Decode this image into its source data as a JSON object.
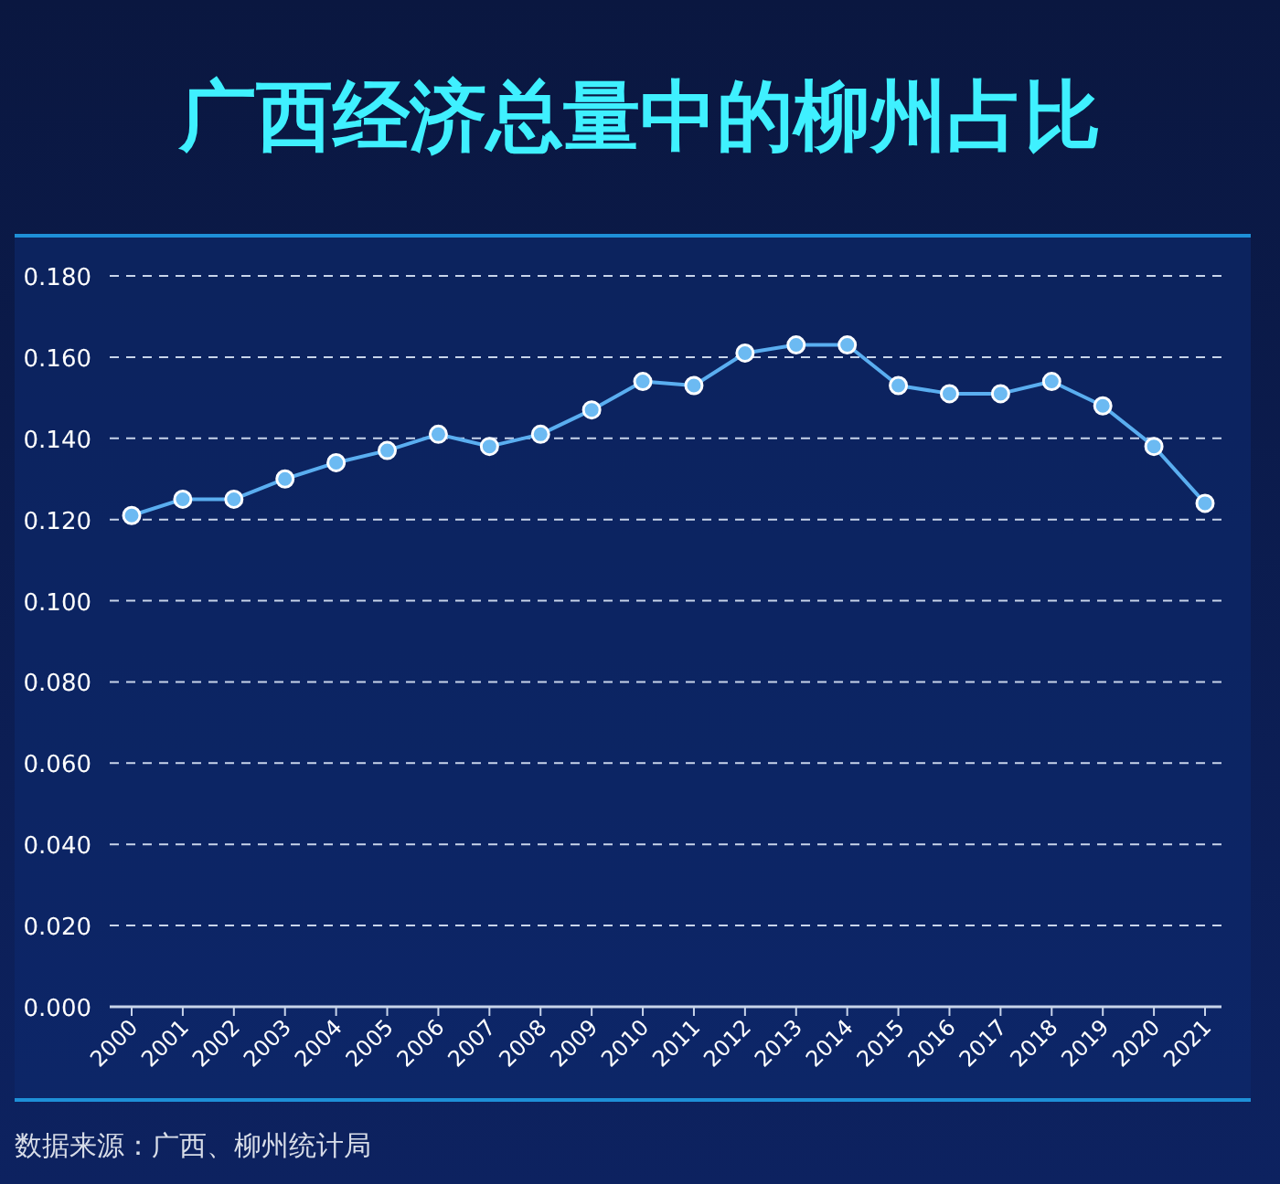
{
  "chart_data": {
    "type": "line",
    "title": "广西经济总量中的柳州占比",
    "categories": [
      "2000",
      "2001",
      "2002",
      "2003",
      "2004",
      "2005",
      "2006",
      "2007",
      "2008",
      "2009",
      "2010",
      "2011",
      "2012",
      "2013",
      "2014",
      "2015",
      "2016",
      "2017",
      "2018",
      "2019",
      "2020",
      "2021"
    ],
    "values": [
      0.121,
      0.125,
      0.125,
      0.13,
      0.134,
      0.137,
      0.141,
      0.138,
      0.141,
      0.147,
      0.154,
      0.153,
      0.161,
      0.163,
      0.163,
      0.153,
      0.151,
      0.151,
      0.154,
      0.148,
      0.138,
      0.124
    ],
    "color": "#5aaef0",
    "ylim": [
      0,
      0.18
    ],
    "yticks": [
      {
        "value": 0,
        "label": "0.000"
      },
      {
        "value": 0.02,
        "label": "0.020"
      },
      {
        "value": 0.04,
        "label": "0.040"
      },
      {
        "value": 0.06,
        "label": "0.060"
      },
      {
        "value": 0.08,
        "label": "0.080"
      },
      {
        "value": 0.1,
        "label": "0.100"
      },
      {
        "value": 0.12,
        "label": "0.120"
      },
      {
        "value": 0.14,
        "label": "0.140"
      },
      {
        "value": 0.16,
        "label": "0.160"
      },
      {
        "value": 0.18,
        "label": "0.180"
      }
    ],
    "grid": "y",
    "marker": "circle",
    "line_style": "solid",
    "annotations": [
      "数据来源：广西、柳州统计局"
    ]
  }
}
